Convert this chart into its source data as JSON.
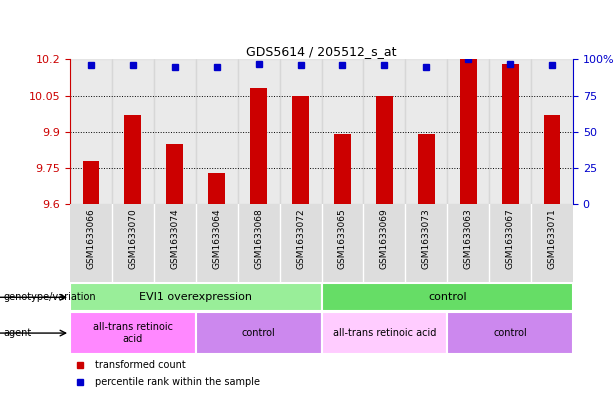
{
  "title": "GDS5614 / 205512_s_at",
  "samples": [
    "GSM1633066",
    "GSM1633070",
    "GSM1633074",
    "GSM1633064",
    "GSM1633068",
    "GSM1633072",
    "GSM1633065",
    "GSM1633069",
    "GSM1633073",
    "GSM1633063",
    "GSM1633067",
    "GSM1633071"
  ],
  "bar_values": [
    9.78,
    9.97,
    9.85,
    9.73,
    10.08,
    10.05,
    9.89,
    10.05,
    9.89,
    10.2,
    10.18,
    9.97
  ],
  "percentile_values": [
    96,
    96,
    95,
    95,
    97,
    96,
    96,
    96,
    95,
    100,
    97,
    96
  ],
  "bar_color": "#CC0000",
  "percentile_color": "#0000CC",
  "ymin": 9.6,
  "ymax": 10.2,
  "yticks": [
    9.6,
    9.75,
    9.9,
    10.05,
    10.2
  ],
  "ytick_labels": [
    "9.6",
    "9.75",
    "9.9",
    "10.05",
    "10.2"
  ],
  "right_yticks": [
    0,
    25,
    50,
    75,
    100
  ],
  "right_ytick_labels": [
    "0",
    "25",
    "50",
    "75",
    "100%"
  ],
  "grid_values": [
    9.75,
    9.9,
    10.05
  ],
  "genotype_groups": [
    {
      "label": "EVI1 overexpression",
      "start": 0,
      "end": 6,
      "color": "#99EE99"
    },
    {
      "label": "control",
      "start": 6,
      "end": 12,
      "color": "#66DD66"
    }
  ],
  "agent_groups": [
    {
      "label": "all-trans retinoic\nacid",
      "start": 0,
      "end": 3,
      "color": "#FF88FF"
    },
    {
      "label": "control",
      "start": 3,
      "end": 6,
      "color": "#CC88EE"
    },
    {
      "label": "all-trans retinoic acid",
      "start": 6,
      "end": 9,
      "color": "#FFCCFF"
    },
    {
      "label": "control",
      "start": 9,
      "end": 12,
      "color": "#CC88EE"
    }
  ],
  "legend_items": [
    {
      "label": "transformed count",
      "color": "#CC0000"
    },
    {
      "label": "percentile rank within the sample",
      "color": "#0000CC"
    }
  ],
  "bar_bg_color": "#CCCCCC",
  "white_color": "#FFFFFF"
}
